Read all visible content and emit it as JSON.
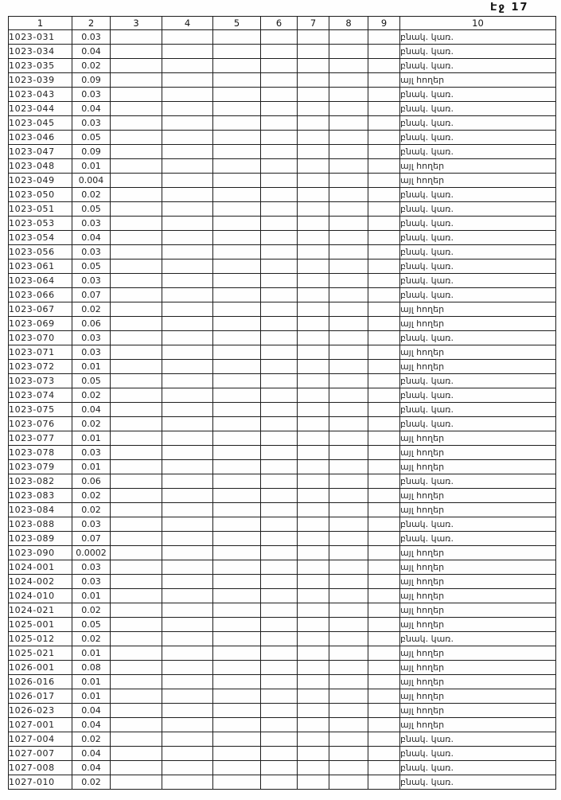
{
  "page": {
    "label": "Էջ 17"
  },
  "table": {
    "headers": [
      "1",
      "2",
      "3",
      "4",
      "5",
      "6",
      "7",
      "8",
      "9",
      "10"
    ],
    "land_use_values": {
      "residential": "բնակ. կառ.",
      "other_lands": "այլ հողեր"
    },
    "rows": [
      {
        "code": "1023-031",
        "value": "0.03",
        "land_use": "բնակ. կառ."
      },
      {
        "code": "1023-034",
        "value": "0.04",
        "land_use": "բնակ. կառ."
      },
      {
        "code": "1023-035",
        "value": "0.02",
        "land_use": "բնակ. կառ."
      },
      {
        "code": "1023-039",
        "value": "0.09",
        "land_use": "այլ հողեր"
      },
      {
        "code": "1023-043",
        "value": "0.03",
        "land_use": "բնակ. կառ."
      },
      {
        "code": "1023-044",
        "value": "0.04",
        "land_use": "բնակ. կառ."
      },
      {
        "code": "1023-045",
        "value": "0.03",
        "land_use": "բնակ. կառ."
      },
      {
        "code": "1023-046",
        "value": "0.05",
        "land_use": "բնակ. կառ."
      },
      {
        "code": "1023-047",
        "value": "0.09",
        "land_use": "բնակ. կառ."
      },
      {
        "code": "1023-048",
        "value": "0.01",
        "land_use": "այլ հողեր"
      },
      {
        "code": "1023-049",
        "value": "0.004",
        "land_use": "այլ հողեր"
      },
      {
        "code": "1023-050",
        "value": "0.02",
        "land_use": "բնակ. կառ."
      },
      {
        "code": "1023-051",
        "value": "0.05",
        "land_use": "բնակ. կառ."
      },
      {
        "code": "1023-053",
        "value": "0.03",
        "land_use": "բնակ. կառ."
      },
      {
        "code": "1023-054",
        "value": "0.04",
        "land_use": "բնակ. կառ."
      },
      {
        "code": "1023-056",
        "value": "0.03",
        "land_use": "բնակ. կառ."
      },
      {
        "code": "1023-061",
        "value": "0.05",
        "land_use": "բնակ. կառ."
      },
      {
        "code": "1023-064",
        "value": "0.03",
        "land_use": "բնակ. կառ."
      },
      {
        "code": "1023-066",
        "value": "0.07",
        "land_use": "բնակ. կառ."
      },
      {
        "code": "1023-067",
        "value": "0.02",
        "land_use": "այլ հողեր"
      },
      {
        "code": "1023-069",
        "value": "0.06",
        "land_use": "այլ հողեր"
      },
      {
        "code": "1023-070",
        "value": "0.03",
        "land_use": "բնակ. կառ."
      },
      {
        "code": "1023-071",
        "value": "0.03",
        "land_use": "այլ հողեր"
      },
      {
        "code": "1023-072",
        "value": "0.01",
        "land_use": "այլ հողեր"
      },
      {
        "code": "1023-073",
        "value": "0.05",
        "land_use": "բնակ. կառ."
      },
      {
        "code": "1023-074",
        "value": "0.02",
        "land_use": "բնակ. կառ."
      },
      {
        "code": "1023-075",
        "value": "0.04",
        "land_use": "բնակ. կառ."
      },
      {
        "code": "1023-076",
        "value": "0.02",
        "land_use": "բնակ. կառ."
      },
      {
        "code": "1023-077",
        "value": "0.01",
        "land_use": "այլ հողեր"
      },
      {
        "code": "1023-078",
        "value": "0.03",
        "land_use": "այլ հողեր"
      },
      {
        "code": "1023-079",
        "value": "0.01",
        "land_use": "այլ հողեր"
      },
      {
        "code": "1023-082",
        "value": "0.06",
        "land_use": "բնակ. կառ."
      },
      {
        "code": "1023-083",
        "value": "0.02",
        "land_use": "այլ հողեր"
      },
      {
        "code": "1023-084",
        "value": "0.02",
        "land_use": "այլ հողեր"
      },
      {
        "code": "1023-088",
        "value": "0.03",
        "land_use": "բնակ. կառ."
      },
      {
        "code": "1023-089",
        "value": "0.07",
        "land_use": "բնակ. կառ."
      },
      {
        "code": "1023-090",
        "value": "0.0002",
        "land_use": "այլ հողեր"
      },
      {
        "code": "1024-001",
        "value": "0.03",
        "land_use": "այլ հողեր"
      },
      {
        "code": "1024-002",
        "value": "0.03",
        "land_use": "այլ հողեր"
      },
      {
        "code": "1024-010",
        "value": "0.01",
        "land_use": "այլ հողեր"
      },
      {
        "code": "1024-021",
        "value": "0.02",
        "land_use": "այլ հողեր"
      },
      {
        "code": "1025-001",
        "value": "0.05",
        "land_use": "այլ հողեր"
      },
      {
        "code": "1025-012",
        "value": "0.02",
        "land_use": "բնակ. կառ."
      },
      {
        "code": "1025-021",
        "value": "0.01",
        "land_use": "այլ հողեր"
      },
      {
        "code": "1026-001",
        "value": "0.08",
        "land_use": "այլ հողեր"
      },
      {
        "code": "1026-016",
        "value": "0.01",
        "land_use": "այլ հողեր"
      },
      {
        "code": "1026-017",
        "value": "0.01",
        "land_use": "այլ հողեր"
      },
      {
        "code": "1026-023",
        "value": "0.04",
        "land_use": "այլ հողեր"
      },
      {
        "code": "1027-001",
        "value": "0.04",
        "land_use": "այլ հողեր"
      },
      {
        "code": "1027-004",
        "value": "0.02",
        "land_use": "բնակ. կառ."
      },
      {
        "code": "1027-007",
        "value": "0.04",
        "land_use": "բնակ. կառ."
      },
      {
        "code": "1027-008",
        "value": "0.04",
        "land_use": "բնակ. կառ."
      },
      {
        "code": "1027-010",
        "value": "0.02",
        "land_use": "բնակ. կառ."
      }
    ]
  }
}
